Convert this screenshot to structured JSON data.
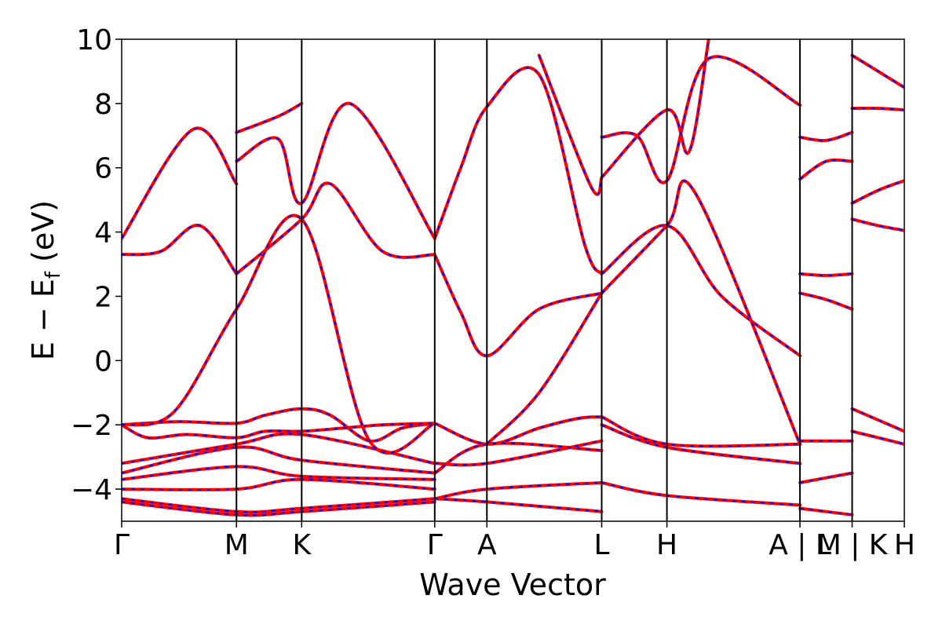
{
  "chart_data": {
    "type": "line",
    "xlabel": "Wave Vector",
    "ylabel": "E − E_f (eV)",
    "ylim": [
      -5,
      10
    ],
    "yticks": [
      -4,
      -2,
      0,
      2,
      4,
      6,
      8,
      10
    ],
    "ytick_labels": [
      "−4",
      "−2",
      "0",
      "2",
      "4",
      "6",
      "8",
      "10"
    ],
    "xlim": [
      0,
      6
    ],
    "kpoint_labels": [
      {
        "x": 0.0,
        "label": "Γ"
      },
      {
        "x": 0.88,
        "label": "M"
      },
      {
        "x": 1.38,
        "label": "K"
      },
      {
        "x": 2.4,
        "label": "Γ"
      },
      {
        "x": 2.8,
        "label": "A"
      },
      {
        "x": 3.68,
        "label": "L"
      },
      {
        "x": 4.18,
        "label": "H"
      },
      {
        "x": 5.2,
        "label": "A | L"
      },
      {
        "x": 5.6,
        "label": "M | K"
      },
      {
        "x": 6.0,
        "label": "H"
      }
    ],
    "vlines": [
      0.88,
      1.38,
      2.4,
      2.8,
      3.68,
      4.18,
      5.2,
      5.6
    ],
    "colors": {
      "band": "#ff0000",
      "band_overlay": "#0000ff",
      "axes": "#000000"
    },
    "grid": false,
    "series": [
      {
        "x": [
          0,
          0.44,
          0.88,
          1.1,
          1.38,
          1.6,
          1.9,
          2.15,
          2.4
        ],
        "values": [
          -2.0,
          -1.9,
          -1.95,
          -1.7,
          -1.5,
          -1.7,
          -2.5,
          -2.1,
          -1.95
        ]
      },
      {
        "x": [
          0,
          0.2,
          0.5,
          0.88,
          1.1,
          1.38,
          1.7,
          2.0,
          2.4
        ],
        "values": [
          -2.0,
          -2.4,
          -2.3,
          -2.4,
          -2.2,
          -2.2,
          -2.1,
          -2.0,
          -1.95
        ]
      },
      {
        "x": [
          0,
          0.88,
          1.38,
          2.4
        ],
        "values": [
          -3.2,
          -2.6,
          -2.3,
          -3.2
        ]
      },
      {
        "x": [
          0,
          0.88,
          1.38,
          2.4
        ],
        "values": [
          -3.5,
          -2.7,
          -3.1,
          -3.5
        ]
      },
      {
        "x": [
          0,
          0.88,
          1.38,
          2.4
        ],
        "values": [
          -3.7,
          -3.3,
          -3.6,
          -3.7
        ]
      },
      {
        "x": [
          0,
          0.88,
          1.38,
          2.4
        ],
        "values": [
          -4.0,
          -4.0,
          -3.7,
          -4.0
        ]
      },
      {
        "x": [
          0,
          0.88,
          1.38,
          2.4
        ],
        "values": [
          -4.3,
          -4.7,
          -4.6,
          -4.3
        ]
      },
      {
        "x": [
          0,
          0.88,
          1.38,
          2.4
        ],
        "values": [
          -4.4,
          -4.8,
          -4.7,
          -4.4
        ]
      },
      {
        "x": [
          0,
          0.3,
          0.6,
          0.88
        ],
        "values": [
          3.3,
          3.4,
          4.2,
          2.7
        ]
      },
      {
        "x": [
          0.88,
          1.38,
          1.6,
          2.0,
          2.4
        ],
        "values": [
          2.7,
          4.4,
          5.5,
          3.4,
          3.3
        ]
      },
      {
        "x": [
          0,
          0.4,
          0.88,
          1.38,
          1.9,
          2.4
        ],
        "values": [
          -2.0,
          -1.6,
          1.6,
          4.4,
          -2.5,
          -1.95
        ]
      },
      {
        "x": [
          0,
          0.55,
          0.88
        ],
        "values": [
          3.8,
          7.2,
          5.5
        ]
      },
      {
        "x": [
          0.88,
          1.2,
          1.38,
          1.75,
          2.4
        ],
        "values": [
          6.2,
          6.9,
          4.9,
          8.0,
          3.8
        ]
      },
      {
        "x": [
          0.88,
          1.2,
          1.38
        ],
        "values": [
          7.1,
          7.6,
          8.0
        ]
      },
      {
        "x": [
          2.4,
          2.8,
          3.2,
          3.5,
          3.68
        ],
        "values": [
          -1.95,
          -2.6,
          -2.1,
          -1.8,
          -1.75
        ]
      },
      {
        "x": [
          2.4,
          2.8,
          3.68
        ],
        "values": [
          -3.2,
          -3.2,
          -2.5
        ]
      },
      {
        "x": [
          2.4,
          2.8,
          3.68
        ],
        "values": [
          -3.5,
          -2.6,
          -2.8
        ]
      },
      {
        "x": [
          2.4,
          2.8,
          3.68
        ],
        "values": [
          -4.3,
          -4.0,
          -3.8
        ]
      },
      {
        "x": [
          2.4,
          2.8,
          3.68
        ],
        "values": [
          -4.3,
          -4.4,
          -4.7
        ]
      },
      {
        "x": [
          2.4,
          2.6,
          2.8,
          3.2,
          3.55,
          3.68
        ],
        "values": [
          3.8,
          6.0,
          7.9,
          8.9,
          3.6,
          2.7
        ]
      },
      {
        "x": [
          2.4,
          2.6,
          2.8,
          3.2,
          3.68
        ],
        "values": [
          3.3,
          1.5,
          0.15,
          1.6,
          2.1
        ]
      },
      {
        "x": [
          2.8,
          3.2,
          3.68
        ],
        "values": [
          -2.6,
          -1.0,
          2.1
        ]
      },
      {
        "x": [
          3.2,
          3.6,
          3.68
        ],
        "values": [
          9.5,
          5.4,
          5.7
        ]
      },
      {
        "x": [
          3.68,
          4.18,
          4.6,
          5.2
        ],
        "values": [
          2.7,
          4.2,
          2.0,
          0.15
        ]
      },
      {
        "x": [
          3.68,
          4.18,
          4.4,
          5.2
        ],
        "values": [
          2.1,
          4.2,
          5.2,
          -2.6
        ]
      },
      {
        "x": [
          3.68,
          4.18,
          5.2
        ],
        "values": [
          -1.75,
          -2.6,
          -2.6
        ]
      },
      {
        "x": [
          3.68,
          4.18,
          5.2
        ],
        "values": [
          -2.0,
          -2.7,
          -3.2
        ]
      },
      {
        "x": [
          3.68,
          4.18,
          5.2
        ],
        "values": [
          -3.8,
          -4.2,
          -4.5
        ]
      },
      {
        "x": [
          3.68,
          3.95,
          4.18,
          4.5,
          5.2
        ],
        "values": [
          6.95,
          7.0,
          5.6,
          9.4,
          7.95
        ]
      },
      {
        "x": [
          3.68,
          4.18,
          4.35,
          4.5
        ],
        "values": [
          5.7,
          7.8,
          6.5,
          10.0
        ]
      },
      {
        "x": [
          5.2,
          5.4,
          5.6
        ],
        "values": [
          6.95,
          6.85,
          7.1
        ]
      },
      {
        "x": [
          5.2,
          5.4,
          5.6
        ],
        "values": [
          5.65,
          6.2,
          6.2
        ]
      },
      {
        "x": [
          5.2,
          5.4,
          5.6
        ],
        "values": [
          2.7,
          2.65,
          2.7
        ]
      },
      {
        "x": [
          5.2,
          5.4,
          5.6
        ],
        "values": [
          2.1,
          1.9,
          1.6
        ]
      },
      {
        "x": [
          5.6,
          5.8,
          6.0
        ],
        "values": [
          9.5,
          9.0,
          8.5
        ]
      },
      {
        "x": [
          5.6,
          5.8,
          6.0
        ],
        "values": [
          7.85,
          7.85,
          7.8
        ]
      },
      {
        "x": [
          5.6,
          5.8,
          6.0
        ],
        "values": [
          4.9,
          5.3,
          5.6
        ]
      },
      {
        "x": [
          5.6,
          5.8,
          6.0
        ],
        "values": [
          4.4,
          4.2,
          4.05
        ]
      },
      {
        "x": [
          5.6,
          6.0
        ],
        "values": [
          -1.5,
          -2.2
        ]
      },
      {
        "x": [
          5.6,
          6.0
        ],
        "values": [
          -2.2,
          -2.6
        ]
      },
      {
        "x": [
          5.2,
          5.6
        ],
        "values": [
          -2.5,
          -2.5
        ]
      },
      {
        "x": [
          5.2,
          5.6
        ],
        "values": [
          -3.8,
          -3.5
        ]
      },
      {
        "x": [
          5.2,
          5.6
        ],
        "values": [
          -4.6,
          -4.8
        ]
      }
    ]
  }
}
